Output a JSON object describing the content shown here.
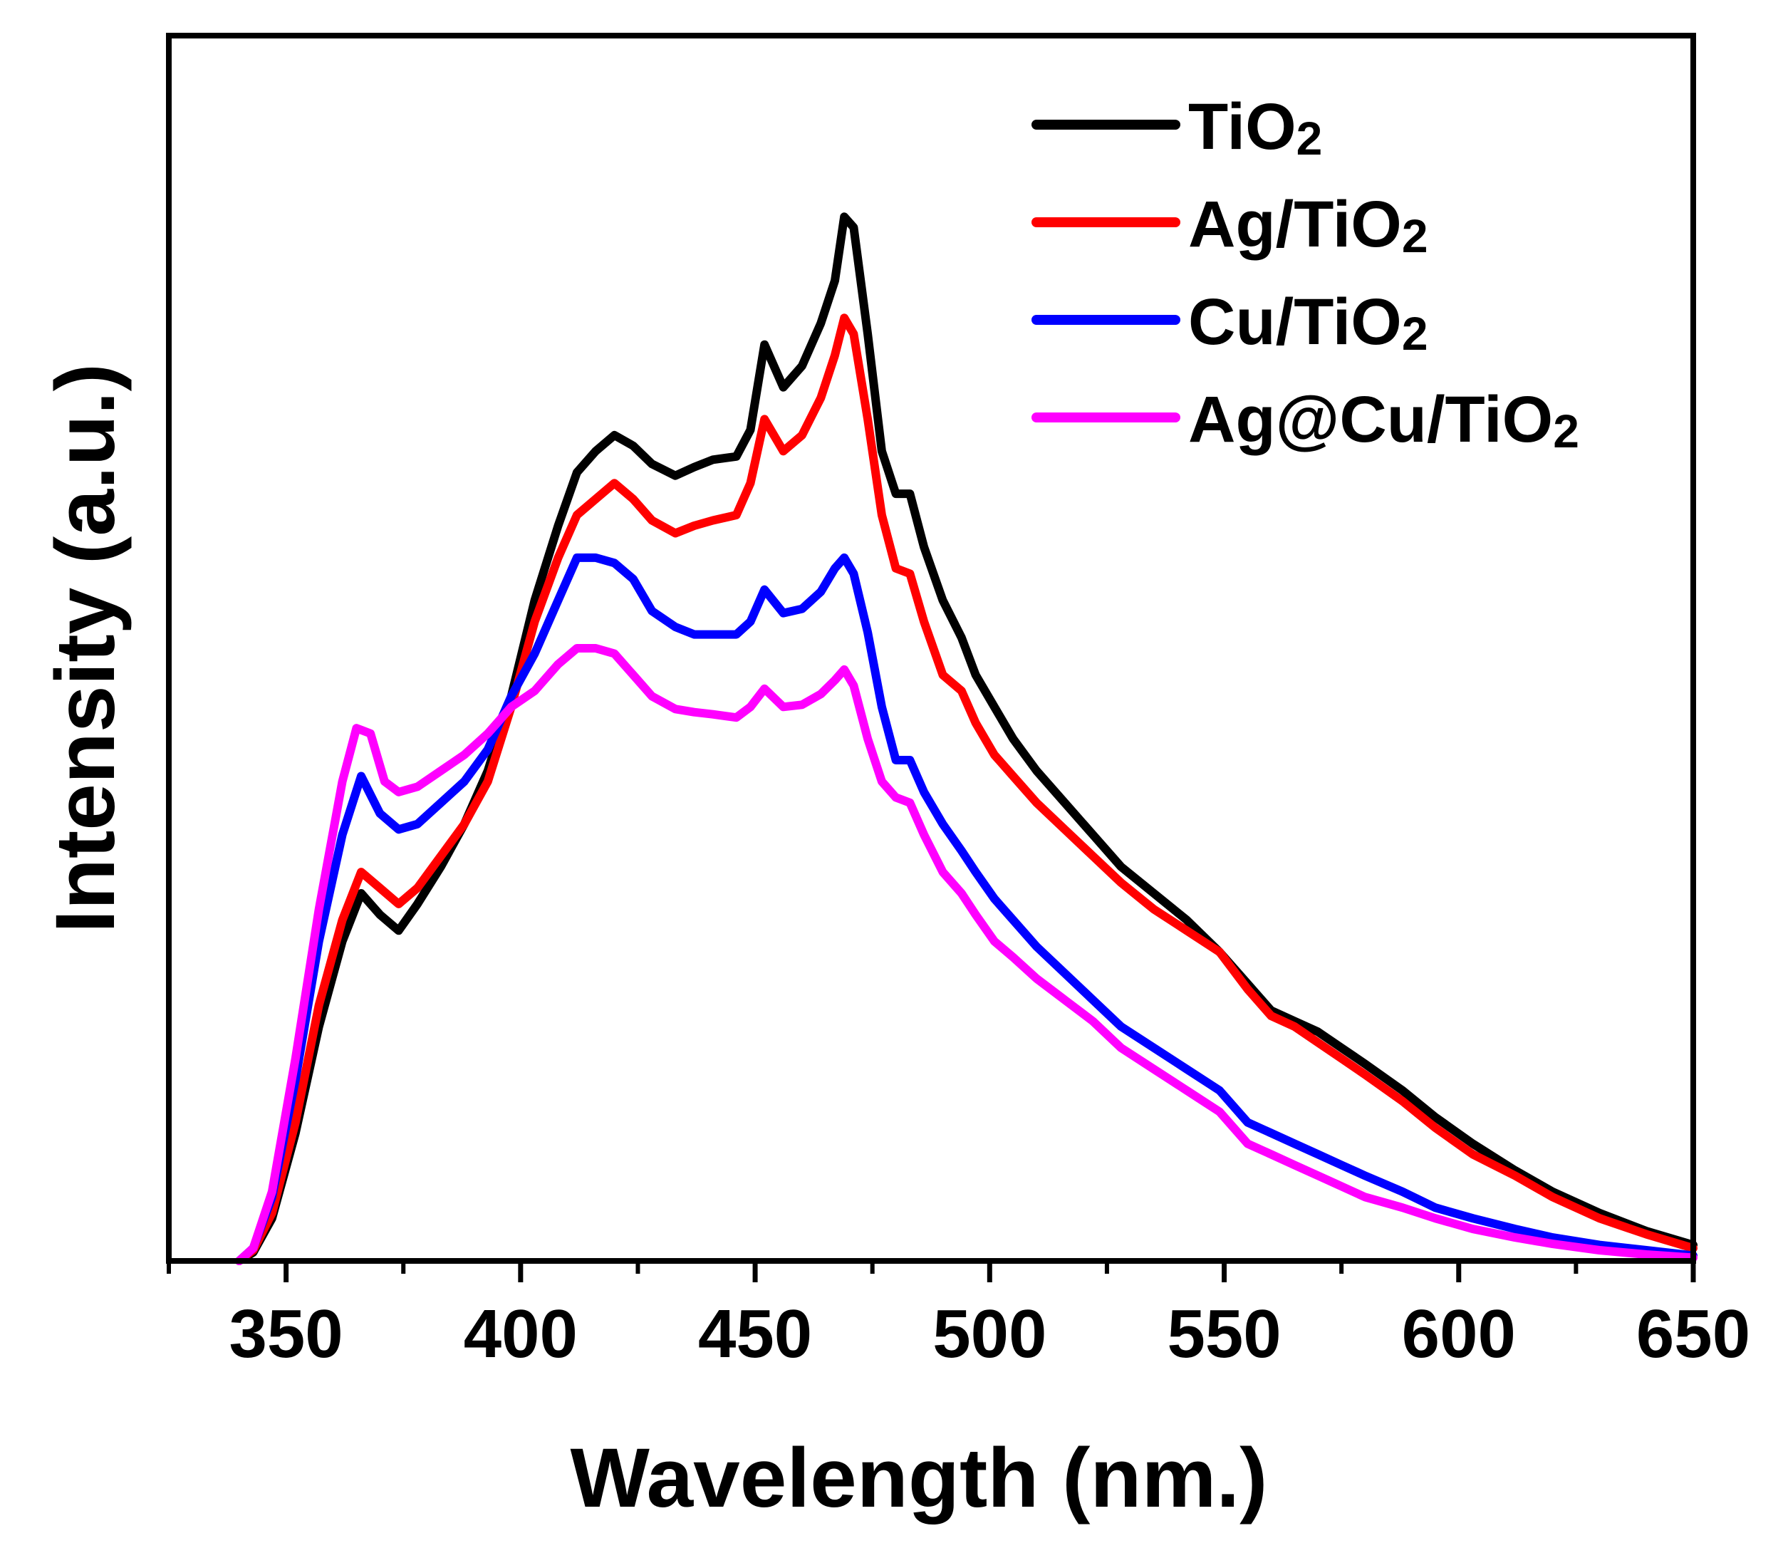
{
  "chart_data": {
    "type": "line",
    "title": "",
    "xlabel": "Wavelength (nm.)",
    "ylabel": "Intensity (a.u.)",
    "xlim": [
      325,
      650
    ],
    "ylim": [
      0,
      1.15
    ],
    "xticks": [
      350,
      400,
      450,
      500,
      550,
      600,
      650
    ],
    "yticks": [],
    "grid": false,
    "legend_position": "top-right",
    "series": [
      {
        "name": "TiO2",
        "label_base": "TiO",
        "label_sub": "2",
        "color": "#000000",
        "points": [
          [
            340,
            0
          ],
          [
            343,
            0.008
          ],
          [
            347,
            0.04
          ],
          [
            352,
            0.12
          ],
          [
            357,
            0.22
          ],
          [
            362,
            0.3
          ],
          [
            366,
            0.345
          ],
          [
            370,
            0.325
          ],
          [
            374,
            0.31
          ],
          [
            378,
            0.335
          ],
          [
            383,
            0.37
          ],
          [
            388,
            0.41
          ],
          [
            393,
            0.46
          ],
          [
            398,
            0.53
          ],
          [
            403,
            0.62
          ],
          [
            408,
            0.69
          ],
          [
            412,
            0.74
          ],
          [
            416,
            0.76
          ],
          [
            420,
            0.775
          ],
          [
            424,
            0.765
          ],
          [
            428,
            0.748
          ],
          [
            433,
            0.737
          ],
          [
            437,
            0.745
          ],
          [
            441,
            0.752
          ],
          [
            446,
            0.755
          ],
          [
            449,
            0.78
          ],
          [
            452,
            0.86
          ],
          [
            456,
            0.82
          ],
          [
            460,
            0.84
          ],
          [
            464,
            0.88
          ],
          [
            467,
            0.92
          ],
          [
            469,
            0.98
          ],
          [
            471,
            0.97
          ],
          [
            474,
            0.87
          ],
          [
            477,
            0.76
          ],
          [
            480,
            0.72
          ],
          [
            483,
            0.72
          ],
          [
            486,
            0.67
          ],
          [
            490,
            0.62
          ],
          [
            494,
            0.585
          ],
          [
            497,
            0.55
          ],
          [
            501,
            0.52
          ],
          [
            505,
            0.49
          ],
          [
            510,
            0.46
          ],
          [
            516,
            0.43
          ],
          [
            522,
            0.4
          ],
          [
            528,
            0.37
          ],
          [
            535,
            0.345
          ],
          [
            542,
            0.32
          ],
          [
            549,
            0.29
          ],
          [
            555,
            0.26
          ],
          [
            560,
            0.235
          ],
          [
            565,
            0.225
          ],
          [
            570,
            0.215
          ],
          [
            575,
            0.2
          ],
          [
            580,
            0.185
          ],
          [
            588,
            0.16
          ],
          [
            595,
            0.135
          ],
          [
            603,
            0.11
          ],
          [
            612,
            0.085
          ],
          [
            620,
            0.065
          ],
          [
            630,
            0.045
          ],
          [
            640,
            0.028
          ],
          [
            650,
            0.015
          ]
        ]
      },
      {
        "name": "Ag/TiO2",
        "label_base": "Ag/TiO",
        "label_sub": "2",
        "color": "#ff0000",
        "points": [
          [
            340,
            0
          ],
          [
            343,
            0.01
          ],
          [
            347,
            0.045
          ],
          [
            352,
            0.13
          ],
          [
            357,
            0.24
          ],
          [
            362,
            0.32
          ],
          [
            366,
            0.365
          ],
          [
            370,
            0.35
          ],
          [
            374,
            0.335
          ],
          [
            378,
            0.35
          ],
          [
            383,
            0.38
          ],
          [
            388,
            0.41
          ],
          [
            393,
            0.45
          ],
          [
            398,
            0.52
          ],
          [
            403,
            0.6
          ],
          [
            408,
            0.66
          ],
          [
            412,
            0.7
          ],
          [
            416,
            0.715
          ],
          [
            420,
            0.73
          ],
          [
            424,
            0.715
          ],
          [
            428,
            0.695
          ],
          [
            433,
            0.683
          ],
          [
            437,
            0.69
          ],
          [
            441,
            0.695
          ],
          [
            446,
            0.7
          ],
          [
            449,
            0.73
          ],
          [
            452,
            0.79
          ],
          [
            456,
            0.76
          ],
          [
            460,
            0.775
          ],
          [
            464,
            0.81
          ],
          [
            467,
            0.85
          ],
          [
            469,
            0.885
          ],
          [
            471,
            0.87
          ],
          [
            474,
            0.79
          ],
          [
            477,
            0.7
          ],
          [
            480,
            0.65
          ],
          [
            483,
            0.645
          ],
          [
            486,
            0.6
          ],
          [
            490,
            0.55
          ],
          [
            494,
            0.535
          ],
          [
            497,
            0.505
          ],
          [
            501,
            0.475
          ],
          [
            505,
            0.455
          ],
          [
            510,
            0.43
          ],
          [
            516,
            0.405
          ],
          [
            522,
            0.38
          ],
          [
            528,
            0.355
          ],
          [
            535,
            0.33
          ],
          [
            542,
            0.31
          ],
          [
            549,
            0.29
          ],
          [
            555,
            0.255
          ],
          [
            560,
            0.23
          ],
          [
            565,
            0.22
          ],
          [
            570,
            0.205
          ],
          [
            575,
            0.19
          ],
          [
            580,
            0.175
          ],
          [
            588,
            0.15
          ],
          [
            595,
            0.125
          ],
          [
            603,
            0.1
          ],
          [
            612,
            0.08
          ],
          [
            620,
            0.06
          ],
          [
            630,
            0.04
          ],
          [
            640,
            0.025
          ],
          [
            650,
            0.012
          ]
        ]
      },
      {
        "name": "Cu/TiO2",
        "label_base": "Cu/TiO",
        "label_sub": "2",
        "color": "#0000ff",
        "points": [
          [
            340,
            0
          ],
          [
            343,
            0.012
          ],
          [
            347,
            0.06
          ],
          [
            352,
            0.17
          ],
          [
            357,
            0.3
          ],
          [
            362,
            0.4
          ],
          [
            366,
            0.455
          ],
          [
            370,
            0.42
          ],
          [
            374,
            0.405
          ],
          [
            378,
            0.41
          ],
          [
            383,
            0.43
          ],
          [
            388,
            0.45
          ],
          [
            393,
            0.48
          ],
          [
            398,
            0.53
          ],
          [
            403,
            0.57
          ],
          [
            408,
            0.62
          ],
          [
            412,
            0.66
          ],
          [
            416,
            0.66
          ],
          [
            420,
            0.655
          ],
          [
            424,
            0.64
          ],
          [
            428,
            0.61
          ],
          [
            433,
            0.595
          ],
          [
            437,
            0.588
          ],
          [
            441,
            0.588
          ],
          [
            446,
            0.588
          ],
          [
            449,
            0.6
          ],
          [
            452,
            0.63
          ],
          [
            456,
            0.608
          ],
          [
            460,
            0.612
          ],
          [
            464,
            0.628
          ],
          [
            467,
            0.65
          ],
          [
            469,
            0.66
          ],
          [
            471,
            0.645
          ],
          [
            474,
            0.59
          ],
          [
            477,
            0.52
          ],
          [
            480,
            0.47
          ],
          [
            483,
            0.47
          ],
          [
            486,
            0.44
          ],
          [
            490,
            0.41
          ],
          [
            494,
            0.385
          ],
          [
            497,
            0.365
          ],
          [
            501,
            0.34
          ],
          [
            505,
            0.32
          ],
          [
            510,
            0.295
          ],
          [
            516,
            0.27
          ],
          [
            522,
            0.245
          ],
          [
            528,
            0.22
          ],
          [
            535,
            0.2
          ],
          [
            542,
            0.18
          ],
          [
            549,
            0.16
          ],
          [
            555,
            0.13
          ],
          [
            560,
            0.12
          ],
          [
            565,
            0.11
          ],
          [
            570,
            0.1
          ],
          [
            575,
            0.09
          ],
          [
            580,
            0.08
          ],
          [
            588,
            0.065
          ],
          [
            595,
            0.05
          ],
          [
            603,
            0.04
          ],
          [
            612,
            0.03
          ],
          [
            620,
            0.022
          ],
          [
            630,
            0.015
          ],
          [
            640,
            0.01
          ],
          [
            650,
            0.005
          ]
        ]
      },
      {
        "name": "Ag@Cu/TiO2",
        "label_base": "Ag@Cu/TiO",
        "label_sub": "2",
        "color": "#ff00ff",
        "points": [
          [
            340,
            0
          ],
          [
            343,
            0.012
          ],
          [
            347,
            0.065
          ],
          [
            352,
            0.19
          ],
          [
            357,
            0.33
          ],
          [
            362,
            0.45
          ],
          [
            365,
            0.5
          ],
          [
            368,
            0.495
          ],
          [
            371,
            0.45
          ],
          [
            374,
            0.44
          ],
          [
            378,
            0.445
          ],
          [
            383,
            0.46
          ],
          [
            388,
            0.475
          ],
          [
            393,
            0.495
          ],
          [
            398,
            0.52
          ],
          [
            403,
            0.535
          ],
          [
            408,
            0.56
          ],
          [
            412,
            0.575
          ],
          [
            416,
            0.575
          ],
          [
            420,
            0.57
          ],
          [
            424,
            0.55
          ],
          [
            428,
            0.53
          ],
          [
            433,
            0.518
          ],
          [
            437,
            0.515
          ],
          [
            441,
            0.513
          ],
          [
            446,
            0.51
          ],
          [
            449,
            0.52
          ],
          [
            452,
            0.537
          ],
          [
            456,
            0.52
          ],
          [
            460,
            0.522
          ],
          [
            464,
            0.532
          ],
          [
            467,
            0.545
          ],
          [
            469,
            0.555
          ],
          [
            471,
            0.54
          ],
          [
            474,
            0.49
          ],
          [
            477,
            0.45
          ],
          [
            480,
            0.435
          ],
          [
            483,
            0.43
          ],
          [
            486,
            0.4
          ],
          [
            490,
            0.365
          ],
          [
            494,
            0.345
          ],
          [
            497,
            0.325
          ],
          [
            501,
            0.3
          ],
          [
            505,
            0.285
          ],
          [
            510,
            0.265
          ],
          [
            516,
            0.245
          ],
          [
            522,
            0.225
          ],
          [
            528,
            0.2
          ],
          [
            535,
            0.18
          ],
          [
            542,
            0.16
          ],
          [
            549,
            0.14
          ],
          [
            555,
            0.11
          ],
          [
            560,
            0.1
          ],
          [
            565,
            0.09
          ],
          [
            570,
            0.08
          ],
          [
            575,
            0.07
          ],
          [
            580,
            0.06
          ],
          [
            588,
            0.05
          ],
          [
            595,
            0.04
          ],
          [
            603,
            0.03
          ],
          [
            612,
            0.022
          ],
          [
            620,
            0.016
          ],
          [
            630,
            0.01
          ],
          [
            640,
            0.006
          ],
          [
            650,
            0.003
          ]
        ]
      }
    ]
  }
}
